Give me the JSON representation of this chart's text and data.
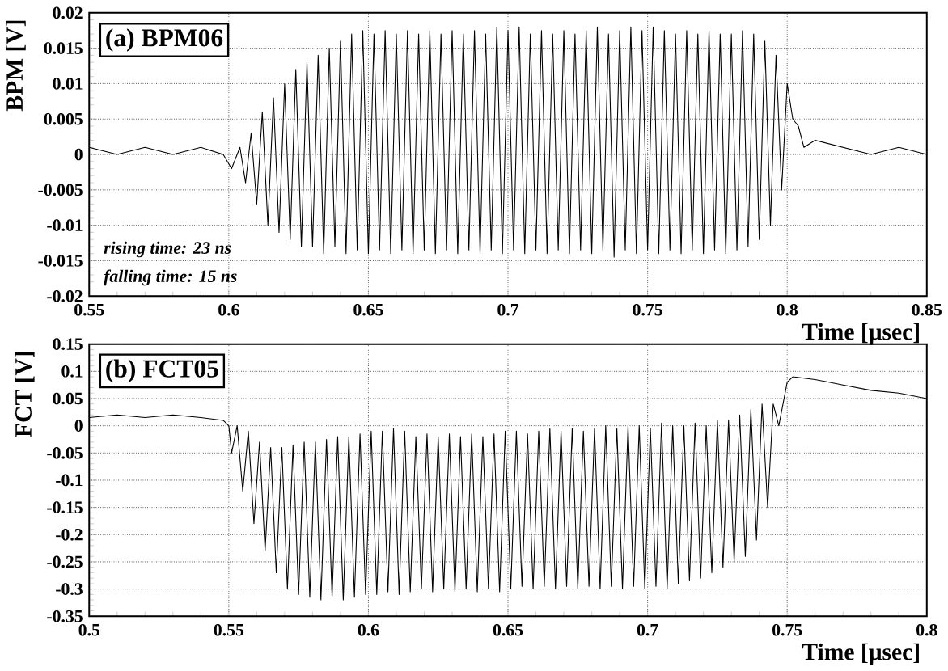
{
  "chart_data": [
    {
      "type": "line",
      "ylabel": "BPM [V]",
      "xlabel": "Time [μsec]",
      "annotations": [
        "(a) BPM06",
        "rising time: 23 ns",
        "falling time: 15 ns"
      ],
      "xlim": [
        0.55,
        0.85
      ],
      "ylim": [
        -0.02,
        0.02
      ],
      "xticks": [
        0.55,
        0.6,
        0.65,
        0.7,
        0.75,
        0.8,
        0.85
      ],
      "yticks": [
        -0.02,
        -0.015,
        -0.01,
        -0.005,
        0,
        0.005,
        0.01,
        0.015,
        0.02
      ],
      "grid": true,
      "series": [
        {
          "color": "#000000",
          "x": [
            0.55,
            0.56,
            0.57,
            0.58,
            0.59,
            0.598,
            0.601,
            0.604,
            0.606,
            0.608,
            0.61,
            0.612,
            0.614,
            0.616,
            0.618,
            0.62,
            0.622,
            0.624,
            0.626,
            0.628,
            0.63,
            0.632,
            0.634,
            0.636,
            0.638,
            0.64,
            0.642,
            0.644,
            0.646,
            0.648,
            0.65,
            0.652,
            0.654,
            0.656,
            0.658,
            0.66,
            0.662,
            0.664,
            0.666,
            0.668,
            0.67,
            0.672,
            0.674,
            0.676,
            0.678,
            0.68,
            0.682,
            0.684,
            0.686,
            0.688,
            0.69,
            0.692,
            0.694,
            0.696,
            0.698,
            0.7,
            0.702,
            0.704,
            0.706,
            0.708,
            0.71,
            0.712,
            0.714,
            0.716,
            0.718,
            0.72,
            0.722,
            0.724,
            0.726,
            0.728,
            0.73,
            0.732,
            0.734,
            0.736,
            0.738,
            0.74,
            0.742,
            0.744,
            0.746,
            0.748,
            0.75,
            0.752,
            0.754,
            0.756,
            0.758,
            0.76,
            0.762,
            0.764,
            0.766,
            0.768,
            0.77,
            0.772,
            0.774,
            0.776,
            0.778,
            0.78,
            0.782,
            0.784,
            0.786,
            0.788,
            0.79,
            0.792,
            0.794,
            0.796,
            0.798,
            0.8,
            0.802,
            0.804,
            0.806,
            0.81,
            0.82,
            0.83,
            0.84,
            0.85
          ],
          "values": [
            0.001,
            0.0,
            0.001,
            0.0,
            0.001,
            0.0,
            -0.002,
            0.001,
            -0.004,
            0.003,
            -0.007,
            0.006,
            -0.01,
            0.008,
            -0.011,
            0.01,
            -0.012,
            0.012,
            -0.013,
            0.013,
            -0.013,
            0.014,
            -0.014,
            0.015,
            -0.013,
            0.016,
            -0.014,
            0.017,
            -0.0135,
            0.0175,
            -0.014,
            0.017,
            -0.0135,
            0.0175,
            -0.014,
            0.017,
            -0.0135,
            0.0175,
            -0.014,
            0.017,
            -0.0135,
            0.0175,
            -0.014,
            0.017,
            -0.0135,
            0.0175,
            -0.014,
            0.017,
            -0.0135,
            0.0175,
            -0.014,
            0.017,
            -0.0135,
            0.018,
            -0.014,
            0.0175,
            -0.0135,
            0.018,
            -0.014,
            0.017,
            -0.0135,
            0.0175,
            -0.014,
            0.017,
            -0.0135,
            0.0175,
            -0.014,
            0.017,
            -0.0135,
            0.0175,
            -0.014,
            0.018,
            -0.0135,
            0.017,
            -0.0145,
            0.0175,
            -0.0135,
            0.018,
            -0.014,
            0.0175,
            -0.0135,
            0.018,
            -0.014,
            0.0175,
            -0.0135,
            0.017,
            -0.014,
            0.0175,
            -0.0135,
            0.017,
            -0.014,
            0.0175,
            -0.0135,
            0.017,
            -0.014,
            0.017,
            -0.0135,
            0.0175,
            -0.013,
            0.017,
            -0.012,
            0.016,
            -0.01,
            0.014,
            -0.005,
            0.01,
            0.005,
            0.004,
            0.001,
            0.002,
            0.001,
            0.0,
            0.001,
            0.0
          ]
        }
      ]
    },
    {
      "type": "line",
      "ylabel": "FCT [V]",
      "xlabel": "Time [μsec]",
      "annotations": [
        "(b) FCT05"
      ],
      "xlim": [
        0.5,
        0.8
      ],
      "ylim": [
        -0.35,
        0.15
      ],
      "xticks": [
        0.5,
        0.55,
        0.6,
        0.65,
        0.7,
        0.75,
        0.8
      ],
      "yticks": [
        -0.35,
        -0.3,
        -0.25,
        -0.2,
        -0.15,
        -0.1,
        -0.05,
        0,
        0.05,
        0.1,
        0.15
      ],
      "grid": true,
      "series": [
        {
          "color": "#000000",
          "x": [
            0.5,
            0.51,
            0.52,
            0.53,
            0.54,
            0.548,
            0.55,
            0.551,
            0.553,
            0.555,
            0.557,
            0.559,
            0.561,
            0.563,
            0.565,
            0.567,
            0.569,
            0.571,
            0.573,
            0.575,
            0.577,
            0.579,
            0.581,
            0.583,
            0.585,
            0.587,
            0.589,
            0.591,
            0.593,
            0.595,
            0.597,
            0.599,
            0.601,
            0.603,
            0.605,
            0.607,
            0.609,
            0.611,
            0.613,
            0.615,
            0.617,
            0.619,
            0.621,
            0.623,
            0.625,
            0.627,
            0.629,
            0.631,
            0.633,
            0.635,
            0.637,
            0.639,
            0.641,
            0.643,
            0.645,
            0.647,
            0.649,
            0.651,
            0.653,
            0.655,
            0.657,
            0.659,
            0.661,
            0.663,
            0.665,
            0.667,
            0.669,
            0.671,
            0.673,
            0.675,
            0.677,
            0.679,
            0.681,
            0.683,
            0.685,
            0.687,
            0.689,
            0.691,
            0.693,
            0.695,
            0.697,
            0.699,
            0.701,
            0.703,
            0.705,
            0.707,
            0.709,
            0.711,
            0.713,
            0.715,
            0.717,
            0.719,
            0.721,
            0.723,
            0.725,
            0.727,
            0.729,
            0.731,
            0.733,
            0.735,
            0.737,
            0.739,
            0.741,
            0.743,
            0.745,
            0.747,
            0.75,
            0.752,
            0.76,
            0.77,
            0.78,
            0.79,
            0.8
          ],
          "values": [
            0.015,
            0.02,
            0.015,
            0.02,
            0.015,
            0.01,
            0.0,
            -0.05,
            0.0,
            -0.12,
            -0.01,
            -0.18,
            -0.03,
            -0.23,
            -0.04,
            -0.27,
            -0.04,
            -0.3,
            -0.035,
            -0.31,
            -0.03,
            -0.315,
            -0.03,
            -0.32,
            -0.025,
            -0.315,
            -0.02,
            -0.32,
            -0.02,
            -0.315,
            -0.015,
            -0.31,
            -0.01,
            -0.31,
            -0.01,
            -0.305,
            -0.005,
            -0.31,
            -0.01,
            -0.305,
            -0.02,
            -0.3,
            -0.015,
            -0.305,
            -0.02,
            -0.3,
            -0.015,
            -0.305,
            -0.02,
            -0.3,
            -0.015,
            -0.305,
            -0.02,
            -0.3,
            -0.015,
            -0.305,
            -0.01,
            -0.3,
            -0.01,
            -0.295,
            -0.015,
            -0.3,
            -0.01,
            -0.295,
            -0.005,
            -0.3,
            -0.01,
            -0.295,
            -0.005,
            -0.3,
            -0.01,
            -0.295,
            -0.005,
            -0.3,
            0.0,
            -0.295,
            -0.005,
            -0.3,
            0.0,
            -0.295,
            0.0,
            -0.3,
            -0.005,
            -0.295,
            0.005,
            -0.3,
            0.0,
            -0.29,
            0.0,
            -0.285,
            0.005,
            -0.28,
            0.0,
            -0.27,
            0.01,
            -0.26,
            0.01,
            -0.25,
            0.02,
            -0.24,
            0.03,
            -0.21,
            0.04,
            -0.15,
            0.04,
            0.0,
            0.08,
            0.09,
            0.085,
            0.075,
            0.065,
            0.06,
            0.05
          ]
        }
      ]
    }
  ]
}
